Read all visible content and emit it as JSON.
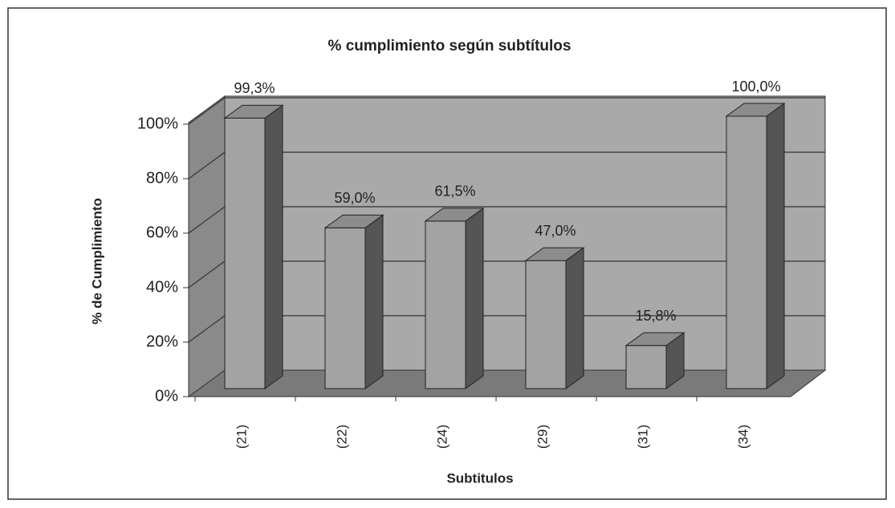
{
  "chart_data": {
    "type": "bar3d",
    "title": "% cumplimiento según subtítulos",
    "x_label": "Subtitulos",
    "y_label": "% de Cumplimiento",
    "categories": [
      "(21)",
      "(22)",
      "(24)",
      "(29)",
      "(31)",
      "(34)"
    ],
    "values": [
      99.3,
      59.0,
      61.5,
      47.0,
      15.8,
      100.0
    ],
    "value_labels": [
      "99,3%",
      "59,0%",
      "61,5%",
      "47,0%",
      "15,8%",
      "100,0%"
    ],
    "color": "#a3a3a3",
    "ylim": [
      0,
      100
    ],
    "yticks": [
      {
        "value": 0,
        "label": "0%"
      },
      {
        "value": 20,
        "label": "20%"
      },
      {
        "value": 40,
        "label": "40%"
      },
      {
        "value": 60,
        "label": "60%"
      },
      {
        "value": 80,
        "label": "80%"
      },
      {
        "value": 100,
        "label": "100%"
      }
    ],
    "grid": true
  }
}
